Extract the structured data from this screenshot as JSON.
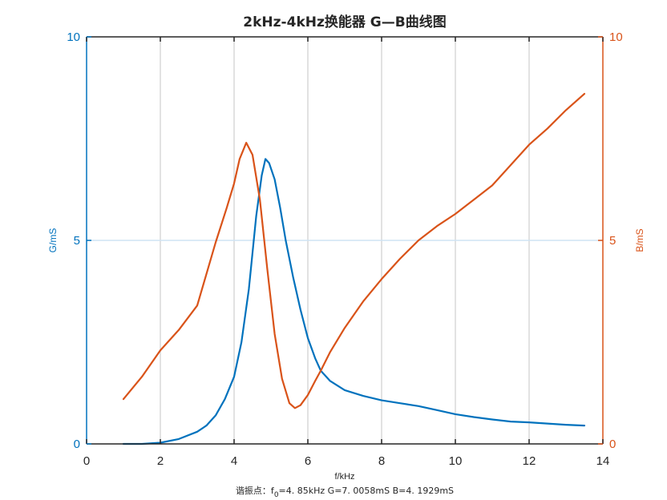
{
  "chart_data": {
    "type": "line",
    "title": "2kHz-4kHz换能器 G—B曲线图",
    "xlabel": "f/kHz",
    "ylabel_left": "G/mS",
    "ylabel_right": "B/mS",
    "xlim": [
      0,
      14
    ],
    "ylim_left": [
      0,
      10
    ],
    "ylim_right": [
      0,
      10
    ],
    "xticks": [
      "0",
      "2",
      "4",
      "6",
      "8",
      "10",
      "12",
      "14"
    ],
    "yticks_left": [
      "0",
      "5",
      "10"
    ],
    "yticks_right": [
      "0",
      "5",
      "10"
    ],
    "grid": {
      "vertical": true,
      "horizontal_at": [
        5
      ]
    },
    "legend": null,
    "annotation": {
      "prefix": "谐振点：f",
      "subscript": "0",
      "text": "=4. 85kHz   G=7. 0058mS   B=4. 1929mS"
    },
    "colors": {
      "G": "#0072BD",
      "B": "#D95319",
      "axis": "#262626",
      "grid": "#d9d9d9",
      "hgrid": "#cfe3f3"
    },
    "series": [
      {
        "name": "G",
        "axis": "left",
        "x": [
          1.0,
          1.5,
          2.0,
          2.5,
          3.0,
          3.25,
          3.5,
          3.75,
          4.0,
          4.2,
          4.4,
          4.6,
          4.75,
          4.85,
          4.95,
          5.1,
          5.25,
          5.4,
          5.6,
          5.8,
          6.0,
          6.2,
          6.35,
          6.6,
          7.0,
          7.5,
          8.0,
          8.5,
          9.0,
          9.5,
          10.0,
          10.5,
          11.0,
          11.5,
          12.0,
          12.5,
          13.0,
          13.5
        ],
        "values": [
          0.0,
          0.0,
          0.03,
          0.12,
          0.3,
          0.45,
          0.7,
          1.1,
          1.65,
          2.5,
          3.8,
          5.6,
          6.6,
          7.0,
          6.9,
          6.5,
          5.8,
          5.0,
          4.1,
          3.3,
          2.6,
          2.1,
          1.8,
          1.55,
          1.32,
          1.18,
          1.07,
          1.0,
          0.93,
          0.83,
          0.73,
          0.66,
          0.6,
          0.55,
          0.53,
          0.5,
          0.47,
          0.45
        ]
      },
      {
        "name": "B",
        "axis": "right",
        "x": [
          1.0,
          1.5,
          2.0,
          2.5,
          3.0,
          3.5,
          3.8,
          4.0,
          4.15,
          4.33,
          4.5,
          4.7,
          4.9,
          5.1,
          5.3,
          5.5,
          5.65,
          5.8,
          6.0,
          6.2,
          6.35,
          6.6,
          7.0,
          7.5,
          8.0,
          8.5,
          9.0,
          9.5,
          10.0,
          10.5,
          11.0,
          11.5,
          12.0,
          12.5,
          13.0,
          13.5
        ],
        "values": [
          1.1,
          1.65,
          2.3,
          2.8,
          3.4,
          4.95,
          5.8,
          6.4,
          7.0,
          7.4,
          7.1,
          6.0,
          4.3,
          2.7,
          1.6,
          1.0,
          0.88,
          0.95,
          1.2,
          1.55,
          1.8,
          2.25,
          2.85,
          3.5,
          4.05,
          4.55,
          5.0,
          5.35,
          5.65,
          6.0,
          6.35,
          6.85,
          7.35,
          7.75,
          8.2,
          8.6
        ]
      }
    ]
  }
}
